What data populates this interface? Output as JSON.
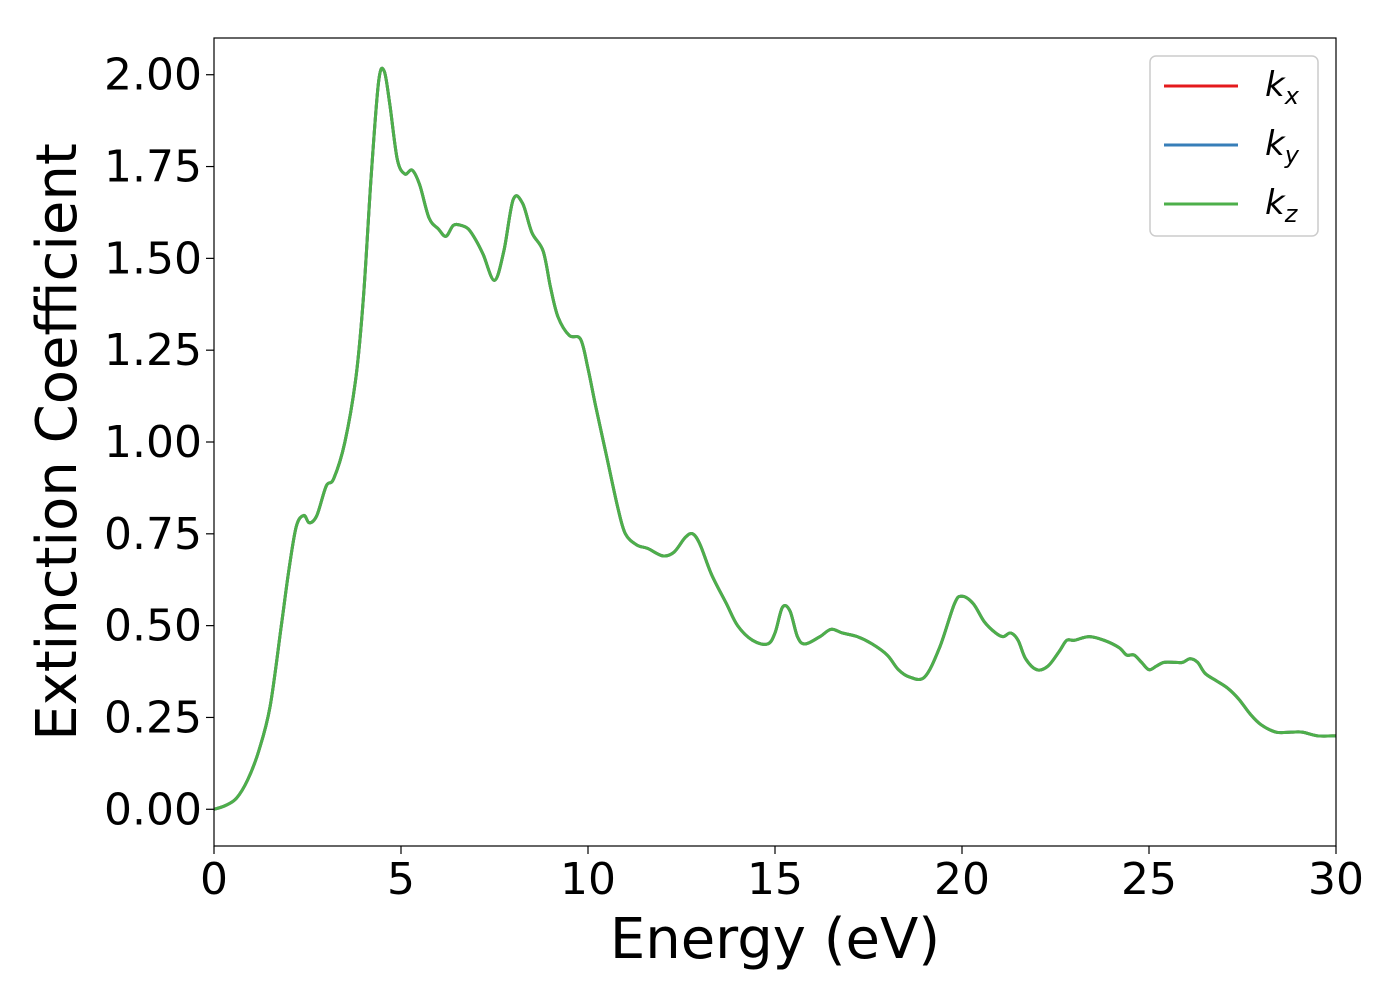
{
  "chart_data": {
    "type": "line",
    "xlabel": "Energy (eV)",
    "ylabel": "Extinction Coefficient",
    "xlim": [
      0,
      30
    ],
    "ylim": [
      -0.1,
      2.1
    ],
    "xticks": [
      0,
      5,
      10,
      15,
      20,
      25,
      30
    ],
    "xtick_labels": [
      "0",
      "5",
      "10",
      "15",
      "20",
      "25",
      "30"
    ],
    "yticks": [
      0,
      0.25,
      0.5,
      0.75,
      1.0,
      1.25,
      1.5,
      1.75,
      2.0
    ],
    "ytick_labels": [
      "0.00",
      "0.25",
      "0.50",
      "0.75",
      "1.00",
      "1.25",
      "1.50",
      "1.75",
      "2.00"
    ],
    "grid": false,
    "legend_position": "top-right",
    "x": [
      0,
      0.3,
      0.6,
      0.9,
      1.2,
      1.5,
      1.8,
      2.0,
      2.2,
      2.4,
      2.55,
      2.75,
      3.0,
      3.2,
      3.5,
      3.8,
      4.0,
      4.2,
      4.4,
      4.55,
      4.7,
      4.9,
      5.1,
      5.3,
      5.5,
      5.75,
      6.0,
      6.2,
      6.4,
      6.6,
      6.8,
      7.0,
      7.2,
      7.5,
      7.75,
      8.0,
      8.25,
      8.5,
      8.8,
      9.0,
      9.2,
      9.5,
      9.8,
      10.0,
      10.2,
      10.5,
      10.8,
      11.0,
      11.3,
      11.6,
      12.0,
      12.3,
      12.6,
      12.8,
      13.0,
      13.3,
      13.7,
      14.0,
      14.4,
      14.8,
      15.0,
      15.2,
      15.4,
      15.6,
      15.8,
      16.2,
      16.5,
      16.8,
      17.2,
      17.6,
      18.0,
      18.3,
      18.6,
      19.0,
      19.4,
      19.8,
      20.0,
      20.3,
      20.6,
      20.9,
      21.1,
      21.3,
      21.5,
      21.7,
      22.0,
      22.3,
      22.6,
      22.8,
      23.0,
      23.4,
      23.8,
      24.2,
      24.4,
      24.6,
      24.8,
      25.0,
      25.2,
      25.4,
      25.7,
      25.9,
      26.1,
      26.3,
      26.5,
      26.8,
      27.1,
      27.4,
      27.7,
      28.0,
      28.4,
      28.8,
      29.1,
      29.5,
      30.0
    ],
    "series": [
      {
        "name": "k",
        "subscript": "x",
        "color": "#e41a1c",
        "values": [
          0.0,
          0.01,
          0.03,
          0.08,
          0.16,
          0.28,
          0.5,
          0.65,
          0.77,
          0.8,
          0.78,
          0.8,
          0.88,
          0.9,
          1.0,
          1.18,
          1.4,
          1.72,
          1.98,
          2.01,
          1.92,
          1.77,
          1.73,
          1.74,
          1.7,
          1.61,
          1.58,
          1.56,
          1.59,
          1.59,
          1.58,
          1.55,
          1.51,
          1.44,
          1.52,
          1.66,
          1.65,
          1.57,
          1.52,
          1.42,
          1.34,
          1.29,
          1.28,
          1.2,
          1.1,
          0.96,
          0.82,
          0.75,
          0.72,
          0.71,
          0.69,
          0.7,
          0.74,
          0.75,
          0.72,
          0.64,
          0.56,
          0.5,
          0.46,
          0.45,
          0.48,
          0.55,
          0.54,
          0.47,
          0.45,
          0.47,
          0.49,
          0.48,
          0.47,
          0.45,
          0.42,
          0.38,
          0.36,
          0.36,
          0.44,
          0.56,
          0.58,
          0.56,
          0.51,
          0.48,
          0.47,
          0.48,
          0.46,
          0.41,
          0.38,
          0.39,
          0.43,
          0.46,
          0.46,
          0.47,
          0.46,
          0.44,
          0.42,
          0.42,
          0.4,
          0.38,
          0.39,
          0.4,
          0.4,
          0.4,
          0.41,
          0.4,
          0.37,
          0.35,
          0.33,
          0.3,
          0.26,
          0.23,
          0.21,
          0.21,
          0.21,
          0.2,
          0.2
        ]
      },
      {
        "name": "k",
        "subscript": "y",
        "color": "#377eb8",
        "values": [
          0.0,
          0.01,
          0.03,
          0.08,
          0.16,
          0.28,
          0.5,
          0.65,
          0.77,
          0.8,
          0.78,
          0.8,
          0.88,
          0.9,
          1.0,
          1.18,
          1.4,
          1.72,
          1.98,
          2.01,
          1.92,
          1.77,
          1.73,
          1.74,
          1.7,
          1.61,
          1.58,
          1.56,
          1.59,
          1.59,
          1.58,
          1.55,
          1.51,
          1.44,
          1.52,
          1.66,
          1.65,
          1.57,
          1.52,
          1.42,
          1.34,
          1.29,
          1.28,
          1.2,
          1.1,
          0.96,
          0.82,
          0.75,
          0.72,
          0.71,
          0.69,
          0.7,
          0.74,
          0.75,
          0.72,
          0.64,
          0.56,
          0.5,
          0.46,
          0.45,
          0.48,
          0.55,
          0.54,
          0.47,
          0.45,
          0.47,
          0.49,
          0.48,
          0.47,
          0.45,
          0.42,
          0.38,
          0.36,
          0.36,
          0.44,
          0.56,
          0.58,
          0.56,
          0.51,
          0.48,
          0.47,
          0.48,
          0.46,
          0.41,
          0.38,
          0.39,
          0.43,
          0.46,
          0.46,
          0.47,
          0.46,
          0.44,
          0.42,
          0.42,
          0.4,
          0.38,
          0.39,
          0.4,
          0.4,
          0.4,
          0.41,
          0.4,
          0.37,
          0.35,
          0.33,
          0.3,
          0.26,
          0.23,
          0.21,
          0.21,
          0.21,
          0.2,
          0.2
        ]
      },
      {
        "name": "k",
        "subscript": "z",
        "color": "#4daf4a",
        "values": [
          0.0,
          0.01,
          0.03,
          0.08,
          0.16,
          0.28,
          0.5,
          0.65,
          0.77,
          0.8,
          0.78,
          0.8,
          0.88,
          0.9,
          1.0,
          1.18,
          1.4,
          1.72,
          1.98,
          2.01,
          1.92,
          1.77,
          1.73,
          1.74,
          1.7,
          1.61,
          1.58,
          1.56,
          1.59,
          1.59,
          1.58,
          1.55,
          1.51,
          1.44,
          1.52,
          1.66,
          1.65,
          1.57,
          1.52,
          1.42,
          1.34,
          1.29,
          1.28,
          1.2,
          1.1,
          0.96,
          0.82,
          0.75,
          0.72,
          0.71,
          0.69,
          0.7,
          0.74,
          0.75,
          0.72,
          0.64,
          0.56,
          0.5,
          0.46,
          0.45,
          0.48,
          0.55,
          0.54,
          0.47,
          0.45,
          0.47,
          0.49,
          0.48,
          0.47,
          0.45,
          0.42,
          0.38,
          0.36,
          0.36,
          0.44,
          0.56,
          0.58,
          0.56,
          0.51,
          0.48,
          0.47,
          0.48,
          0.46,
          0.41,
          0.38,
          0.39,
          0.43,
          0.46,
          0.46,
          0.47,
          0.46,
          0.44,
          0.42,
          0.42,
          0.4,
          0.38,
          0.39,
          0.4,
          0.4,
          0.4,
          0.41,
          0.4,
          0.37,
          0.35,
          0.33,
          0.3,
          0.26,
          0.23,
          0.21,
          0.21,
          0.21,
          0.2,
          0.2
        ]
      }
    ]
  }
}
